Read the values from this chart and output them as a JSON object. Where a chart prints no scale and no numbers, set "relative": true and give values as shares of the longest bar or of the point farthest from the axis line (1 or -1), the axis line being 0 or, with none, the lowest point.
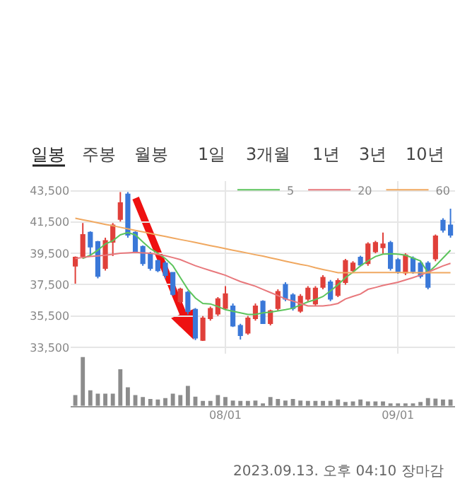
{
  "chart_data": [
    {
      "type": "candlestick",
      "categories": [
        null,
        null,
        null,
        null,
        null,
        null,
        null,
        null,
        null,
        null,
        null,
        null,
        null,
        null,
        null,
        null,
        null,
        null,
        null,
        null,
        "08/01",
        null,
        null,
        null,
        null,
        null,
        null,
        null,
        null,
        null,
        null,
        null,
        null,
        null,
        null,
        null,
        null,
        null,
        null,
        null,
        null,
        null,
        null,
        "09/01",
        null,
        null,
        null,
        null,
        null,
        null,
        null
      ],
      "ohlc": [
        [
          38700,
          39300,
          37560,
          39230
        ],
        [
          39320,
          41440,
          39170,
          40680
        ],
        [
          40830,
          40900,
          39320,
          39920
        ],
        [
          40230,
          40300,
          37900,
          38050
        ],
        [
          38560,
          40500,
          38400,
          40290
        ],
        [
          40230,
          41440,
          39320,
          41290
        ],
        [
          41680,
          43410,
          41530,
          42710
        ],
        [
          43260,
          43410,
          40500,
          40680
        ],
        [
          40830,
          40900,
          39500,
          39620
        ],
        [
          39920,
          40000,
          38700,
          38860
        ],
        [
          39470,
          39600,
          38400,
          38560
        ],
        [
          39020,
          39100,
          38300,
          38410
        ],
        [
          38860,
          39000,
          37900,
          38110
        ],
        [
          38260,
          38300,
          36800,
          36900
        ],
        [
          36440,
          37300,
          36300,
          37200
        ],
        [
          37000,
          37100,
          35600,
          35800
        ],
        [
          35900,
          36000,
          33960,
          34110
        ],
        [
          33960,
          35500,
          33900,
          35350
        ],
        [
          35350,
          36100,
          35200,
          35960
        ],
        [
          35650,
          36700,
          35500,
          36580
        ],
        [
          36000,
          37400,
          35900,
          36900
        ],
        [
          36120,
          36300,
          34800,
          34880
        ],
        [
          34880,
          35000,
          34000,
          34270
        ],
        [
          34420,
          35500,
          34300,
          35350
        ],
        [
          35350,
          36300,
          35200,
          36120
        ],
        [
          36420,
          36500,
          35000,
          35040
        ],
        [
          35040,
          35900,
          34900,
          35810
        ],
        [
          35990,
          37200,
          35850,
          37050
        ],
        [
          37500,
          37650,
          36450,
          36590
        ],
        [
          36830,
          36950,
          35850,
          35990
        ],
        [
          35830,
          36900,
          35700,
          36740
        ],
        [
          36590,
          37400,
          36450,
          37260
        ],
        [
          36290,
          37400,
          36150,
          37260
        ],
        [
          37350,
          38100,
          37200,
          37950
        ],
        [
          37650,
          37800,
          36450,
          36590
        ],
        [
          36830,
          37900,
          36700,
          37740
        ],
        [
          37650,
          39150,
          37500,
          39020
        ],
        [
          38410,
          39000,
          38250,
          38860
        ],
        [
          39230,
          39350,
          38650,
          38770
        ],
        [
          38860,
          40200,
          38700,
          40080
        ],
        [
          39620,
          40300,
          39500,
          40170
        ],
        [
          39880,
          40830,
          39470,
          40080
        ],
        [
          40170,
          40300,
          38400,
          38560
        ],
        [
          39080,
          39200,
          38200,
          38350
        ],
        [
          38260,
          39500,
          38100,
          39380
        ],
        [
          39170,
          39300,
          38200,
          38350
        ],
        [
          38860,
          39000,
          37900,
          38050
        ],
        [
          38860,
          39000,
          37200,
          37350
        ],
        [
          39170,
          40700,
          39000,
          40590
        ],
        [
          41590,
          41740,
          40830,
          40990
        ],
        [
          41290,
          42350,
          40500,
          40680
        ]
      ],
      "series": [
        {
          "name": "5",
          "type": "line",
          "color": "#5cc45c",
          "values": [
            null,
            39170,
            39380,
            39700,
            40100,
            40300,
            40680,
            40830,
            40680,
            40230,
            39800,
            39500,
            39170,
            38710,
            37950,
            37200,
            36650,
            36300,
            36270,
            36100,
            35900,
            35800,
            35700,
            35600,
            35600,
            35700,
            35750,
            35830,
            35900,
            36000,
            36200,
            36400,
            36550,
            36740,
            37100,
            37500,
            37950,
            38300,
            38700,
            39020,
            39300,
            39450,
            39470,
            39450,
            39380,
            39200,
            39020,
            38260,
            38700,
            39200,
            39700
          ]
        },
        {
          "name": "20",
          "type": "line",
          "color": "#e8787c",
          "values": [
            39170,
            39240,
            39300,
            39340,
            39380,
            39440,
            39500,
            39530,
            39560,
            39530,
            39500,
            39430,
            39350,
            39230,
            39100,
            38900,
            38710,
            38550,
            38400,
            38250,
            38100,
            37900,
            37700,
            37550,
            37400,
            37200,
            37000,
            36800,
            36590,
            36450,
            36300,
            36140,
            36140,
            36140,
            36200,
            36300,
            36590,
            36750,
            36900,
            37200,
            37320,
            37450,
            37550,
            37650,
            37800,
            37950,
            38110,
            38300,
            38500,
            38700,
            38860
          ]
        },
        {
          "name": "60",
          "type": "line",
          "color": "#f0a860",
          "values": [
            41740,
            41640,
            41550,
            41450,
            41350,
            41260,
            41160,
            41060,
            40960,
            40870,
            40770,
            40670,
            40580,
            40480,
            40380,
            40290,
            40190,
            40090,
            39990,
            39900,
            39800,
            39700,
            39610,
            39510,
            39410,
            39320,
            39210,
            39110,
            39000,
            38900,
            38790,
            38710,
            38580,
            38470,
            38370,
            38260,
            38260,
            38260,
            38270,
            38270,
            38280,
            38280,
            38280,
            38270,
            38270,
            38260,
            38260,
            38260,
            38260,
            38260,
            38260
          ]
        }
      ],
      "ylim": [
        33100,
        44100
      ],
      "yticks": [
        {
          "value": 33500,
          "label": "33,500"
        },
        {
          "value": 35500,
          "label": "35,500"
        },
        {
          "value": 37500,
          "label": "37,500"
        },
        {
          "value": 39500,
          "label": "39,500"
        },
        {
          "value": 41500,
          "label": "41,500"
        },
        {
          "value": 43500,
          "label": "43,500"
        }
      ],
      "grid": true,
      "legend": "top right",
      "annotations": [
        "일봉",
        "주봉",
        "월봉",
        "1일",
        "3개월",
        "1년",
        "3년",
        "10년",
        "2023.09.13. 오후 04:10 장마감"
      ]
    },
    {
      "type": "bar",
      "relative": true,
      "color": "#8c8c8c",
      "categories": [
        null,
        null,
        null,
        null,
        null,
        null,
        null,
        null,
        null,
        null,
        null,
        null,
        null,
        null,
        null,
        null,
        null,
        null,
        null,
        null,
        null,
        null,
        null,
        null,
        null,
        null,
        null,
        null,
        null,
        null,
        null,
        null,
        null,
        null,
        null,
        null,
        null,
        null,
        null,
        null,
        null,
        null,
        null,
        null,
        null,
        null,
        null,
        null,
        null,
        null,
        null
      ],
      "values": [
        0.22,
        1,
        0.32,
        0.25,
        0.25,
        0.25,
        0.75,
        0.38,
        0.22,
        0.18,
        0.14,
        0.13,
        0.16,
        0.25,
        0.22,
        0.41,
        0.19,
        0.1,
        0.1,
        0.22,
        0.18,
        0.11,
        0.1,
        0.1,
        0.11,
        0.05,
        0.18,
        0.14,
        0.11,
        0.14,
        0.11,
        0.1,
        0.1,
        0.1,
        0.1,
        0.13,
        0.08,
        0.09,
        0.13,
        0.09,
        0.09,
        0.09,
        0.05,
        0.05,
        0.05,
        0.05,
        0.08,
        0.16,
        0.15,
        0.13,
        0.13
      ]
    }
  ]
}
